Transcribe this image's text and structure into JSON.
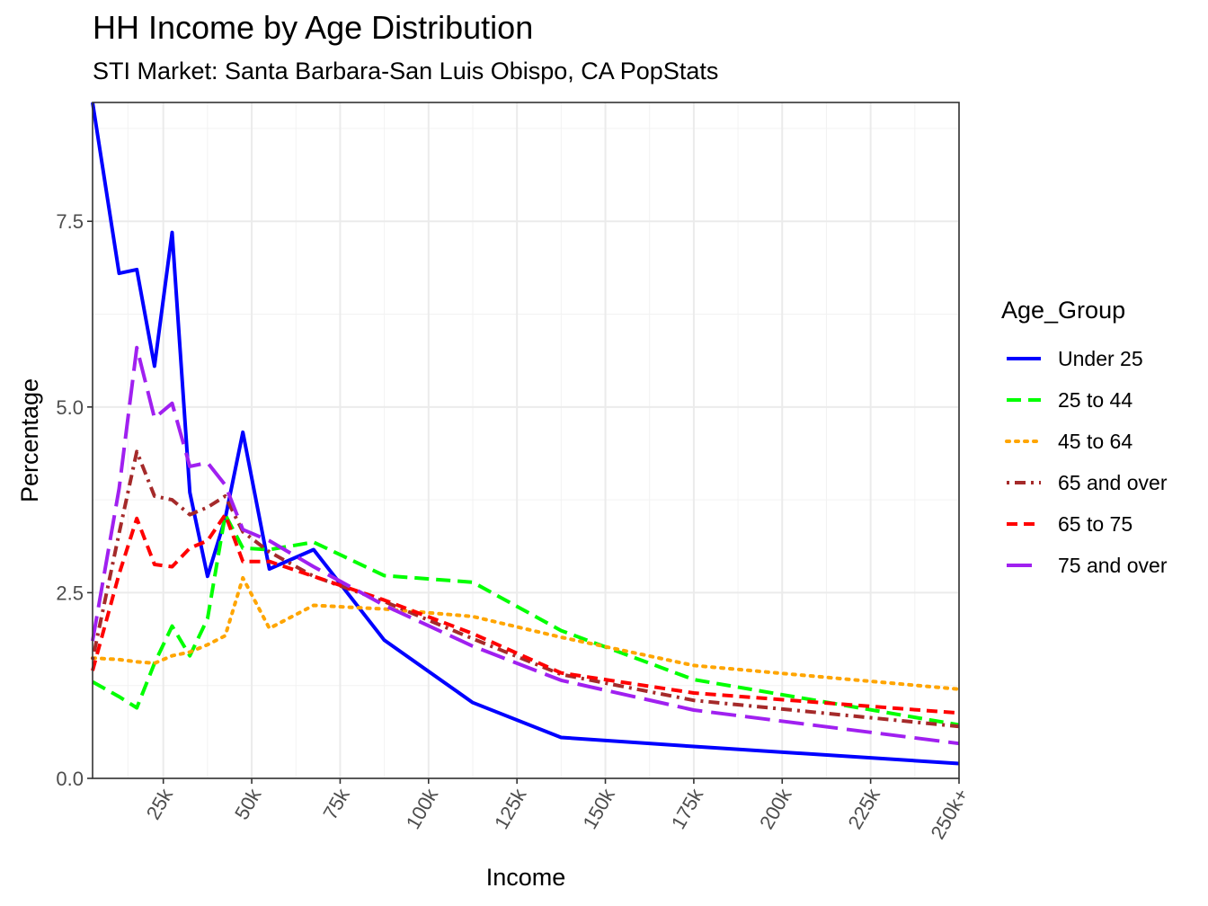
{
  "chart_data": {
    "type": "line",
    "title": "HH Income by Age Distribution",
    "subtitle": "STI Market: Santa Barbara-San Luis Obispo, CA PopStats",
    "xlabel": "Income",
    "ylabel": "Percentage",
    "x_ticks": [
      {
        "value": 25,
        "label": "25k"
      },
      {
        "value": 50,
        "label": "50k"
      },
      {
        "value": 75,
        "label": "75k"
      },
      {
        "value": 100,
        "label": "100k"
      },
      {
        "value": 125,
        "label": "125k"
      },
      {
        "value": 150,
        "label": "150k"
      },
      {
        "value": 175,
        "label": "175k"
      },
      {
        "value": 200,
        "label": "200k"
      },
      {
        "value": 225,
        "label": "225k"
      },
      {
        "value": 250,
        "label": "250k+"
      }
    ],
    "y_ticks": [
      {
        "value": 0,
        "label": "0.0"
      },
      {
        "value": 2.5,
        "label": "2.5"
      },
      {
        "value": 5,
        "label": "5.0"
      },
      {
        "value": 7.5,
        "label": "7.5"
      }
    ],
    "xlim": [
      5,
      250
    ],
    "ylim": [
      0,
      9.1
    ],
    "grid": true,
    "legend_title": "Age_Group",
    "legend_position": "right",
    "series": [
      {
        "name": "Under 25",
        "color": "#0000FF",
        "dash": "solid",
        "x": [
          5,
          12.5,
          17.5,
          22.5,
          27.5,
          32.5,
          37.5,
          42.5,
          47.5,
          55,
          67.5,
          87.5,
          112.5,
          137.5,
          175,
          250
        ],
        "y": [
          9.1,
          6.8,
          6.85,
          5.55,
          7.35,
          3.85,
          2.72,
          3.5,
          4.66,
          2.82,
          3.08,
          1.86,
          1.02,
          0.55,
          0.43,
          0.2
        ]
      },
      {
        "name": "25 to 44",
        "color": "#00FF00",
        "dash": "dashed",
        "x": [
          5,
          12.5,
          17.5,
          22.5,
          27.5,
          32.5,
          37.5,
          42.5,
          47.5,
          55,
          67.5,
          87.5,
          112.5,
          137.5,
          175,
          250
        ],
        "y": [
          1.3,
          1.1,
          0.95,
          1.55,
          2.05,
          1.65,
          2.15,
          3.55,
          3.1,
          3.08,
          3.18,
          2.73,
          2.64,
          1.99,
          1.33,
          0.72
        ]
      },
      {
        "name": "45 to 64",
        "color": "#FFA500",
        "dash": "dotted",
        "x": [
          5,
          12.5,
          17.5,
          22.5,
          27.5,
          32.5,
          37.5,
          42.5,
          47.5,
          55,
          67.5,
          87.5,
          112.5,
          137.5,
          175,
          250
        ],
        "y": [
          1.62,
          1.6,
          1.57,
          1.55,
          1.65,
          1.7,
          1.8,
          1.92,
          2.7,
          2.02,
          2.33,
          2.28,
          2.18,
          1.9,
          1.52,
          1.2
        ]
      },
      {
        "name": "65 and over",
        "color": "#A52A2A",
        "dash": "dotdash",
        "x": [
          5,
          12.5,
          17.5,
          22.5,
          27.5,
          32.5,
          37.5,
          42.5,
          47.5,
          55,
          67.5,
          87.5,
          112.5,
          137.5,
          175,
          250
        ],
        "y": [
          1.6,
          3.3,
          4.4,
          3.8,
          3.75,
          3.55,
          3.65,
          3.8,
          3.32,
          3.05,
          2.72,
          2.38,
          1.88,
          1.4,
          1.05,
          0.7
        ]
      },
      {
        "name": "65 to 75",
        "color": "#FF0000",
        "dash": "shortdash",
        "x": [
          5,
          12.5,
          17.5,
          22.5,
          27.5,
          32.5,
          37.5,
          42.5,
          47.5,
          55,
          67.5,
          87.5,
          112.5,
          137.5,
          175,
          250
        ],
        "y": [
          1.45,
          2.75,
          3.5,
          2.88,
          2.85,
          3.1,
          3.2,
          3.55,
          2.92,
          2.92,
          2.72,
          2.4,
          1.95,
          1.42,
          1.15,
          0.88
        ]
      },
      {
        "name": "75 and over",
        "color": "#A020F0",
        "dash": "longdash",
        "x": [
          5,
          12.5,
          17.5,
          22.5,
          27.5,
          32.5,
          37.5,
          42.5,
          47.5,
          55,
          67.5,
          87.5,
          112.5,
          137.5,
          175,
          250
        ],
        "y": [
          1.85,
          3.9,
          5.8,
          4.85,
          5.05,
          4.2,
          4.25,
          3.95,
          3.35,
          3.2,
          2.85,
          2.33,
          1.78,
          1.32,
          0.92,
          0.47
        ]
      }
    ]
  }
}
